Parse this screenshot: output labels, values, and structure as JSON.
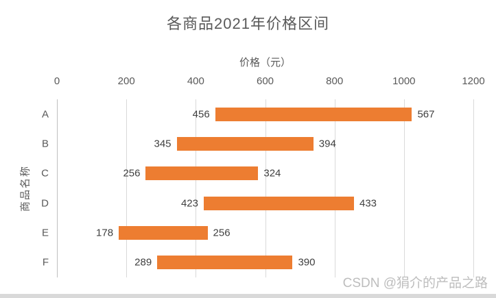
{
  "chart_data": {
    "type": "bar",
    "subtype": "horizontal-floating-range",
    "title": "各商品2021年价格区间",
    "xlabel": "价格（元）",
    "ylabel": "商品名称",
    "xlim": [
      0,
      1200
    ],
    "xticks": [
      0,
      200,
      400,
      600,
      800,
      1000,
      1200
    ],
    "grid": true,
    "legend": false,
    "categories": [
      "A",
      "B",
      "C",
      "D",
      "E",
      "F"
    ],
    "bars": [
      {
        "category": "A",
        "start": 456,
        "extent": 567,
        "end": 1023,
        "start_label": "456",
        "end_label": "567"
      },
      {
        "category": "B",
        "start": 345,
        "extent": 394,
        "end": 739,
        "start_label": "345",
        "end_label": "394"
      },
      {
        "category": "C",
        "start": 256,
        "extent": 324,
        "end": 580,
        "start_label": "256",
        "end_label": "324"
      },
      {
        "category": "D",
        "start": 423,
        "extent": 433,
        "end": 856,
        "start_label": "423",
        "end_label": "433"
      },
      {
        "category": "E",
        "start": 178,
        "extent": 256,
        "end": 434,
        "start_label": "178",
        "end_label": "256"
      },
      {
        "category": "F",
        "start": 289,
        "extent": 390,
        "end": 679,
        "start_label": "289",
        "end_label": "390"
      }
    ],
    "bar_color": "#ED7D31"
  },
  "colors": {
    "background": "#FFFFFF",
    "bar": "#ED7D31",
    "gridline": "#D9D9D9",
    "axis_line": "#BFBFBF",
    "title_text": "#595959",
    "axis_text": "#595959",
    "data_label_text": "#404040",
    "watermark_text": "#BDBDBD",
    "bottom_strip": "#D9D9D9"
  },
  "watermark": {
    "text": "CSDN @狷介的产品之路"
  }
}
